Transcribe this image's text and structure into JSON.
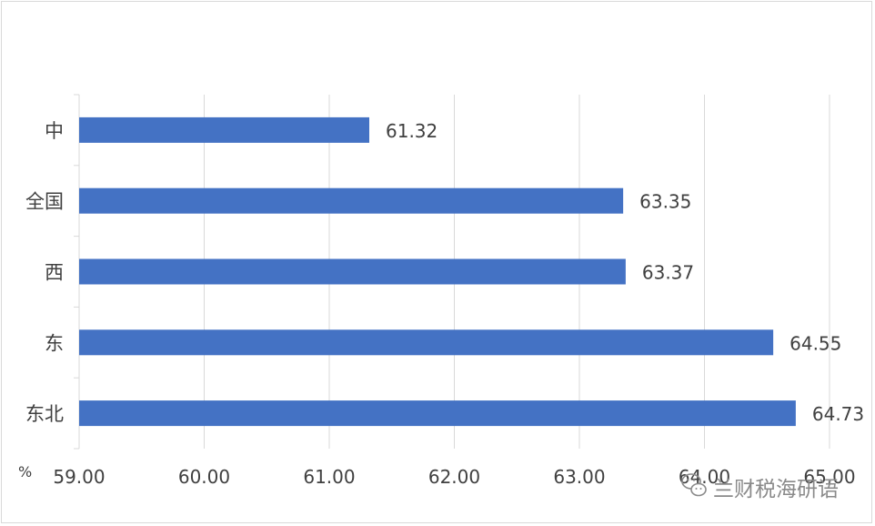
{
  "chart_data": {
    "type": "bar",
    "orientation": "horizontal",
    "categories": [
      "中",
      "全国",
      "西",
      "东",
      "东北"
    ],
    "values": [
      61.32,
      63.35,
      63.37,
      64.55,
      64.73
    ],
    "data_labels": [
      "61.32",
      "63.35",
      "63.37",
      "64.55",
      "64.73"
    ],
    "xlim": [
      59.0,
      65.0
    ],
    "x_ticks": [
      "59.00",
      "60.00",
      "61.00",
      "62.00",
      "63.00",
      "64.00",
      "65.00"
    ],
    "x_unit": "%",
    "title": "",
    "xlabel": "",
    "ylabel": "",
    "grid": "vertical",
    "legend": "none",
    "bar_color": "#4472c4"
  },
  "watermark": {
    "text": "兰财税海研语",
    "icon": "wechat-icon"
  }
}
